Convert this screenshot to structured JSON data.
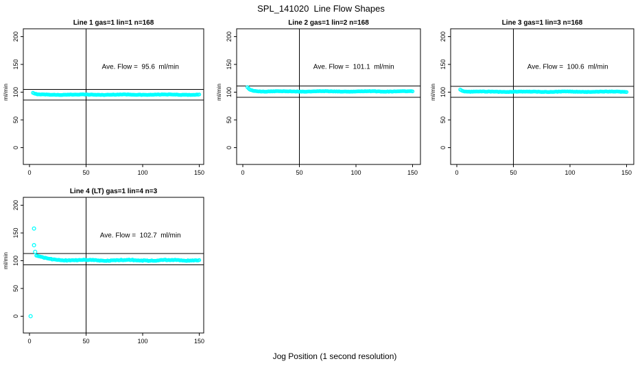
{
  "figure": {
    "title": "SPL_141020  Line Flow Shapes",
    "xlabel": "Jog Position (1 second resolution)",
    "ylabel": "ml/min",
    "background": "#FFFFFF",
    "point_color": "#00FFFF",
    "line_color": "#000000",
    "text_color": "#000000"
  },
  "chart_data": {
    "type": "scatter",
    "title": "SPL_141020  Line Flow Shapes",
    "xlabel": "Jog Position (1 second resolution)",
    "ylabel": "ml/min",
    "x_ticks": [
      0,
      50,
      100,
      150
    ],
    "y_ticks": [
      0,
      50,
      100,
      150,
      200
    ],
    "xlim": [
      -5,
      157
    ],
    "ylim": [
      -30,
      214
    ],
    "grid": false,
    "legend": "none",
    "point_style": "open-circle",
    "point_color": "#00FFFF",
    "panels": [
      {
        "title": "Line 1 gas=1 lin=1 n=168",
        "line": 1,
        "gas": 1,
        "lin": 1,
        "n": 168,
        "ave_flow": 95.6,
        "annotation": "Ave. Flow =  95.6  ml/min",
        "vline_x": 50,
        "ref_lines": [
          105.2,
          86.0
        ],
        "band": {
          "x_start": 3,
          "x_end": 150,
          "start_value": 98.5,
          "settle_value": 95.5,
          "decay_tau": 2.2,
          "noise": 0.8
        },
        "outliers": []
      },
      {
        "title": "Line 2 gas=1 lin=2 n=168",
        "line": 2,
        "gas": 1,
        "lin": 2,
        "n": 168,
        "ave_flow": 101.1,
        "annotation": "Ave. Flow =  101.1  ml/min",
        "vline_x": 50,
        "ref_lines": [
          111.2,
          91.0
        ],
        "band": {
          "x_start": 4,
          "x_end": 150,
          "start_value": 108.5,
          "settle_value": 101.4,
          "decay_tau": 3.0,
          "noise": 0.8
        },
        "outliers": []
      },
      {
        "title": "Line 3 gas=1 lin=3 n=168",
        "line": 3,
        "gas": 1,
        "lin": 3,
        "n": 168,
        "ave_flow": 100.6,
        "annotation": "Ave. Flow =  100.6  ml/min",
        "vline_x": 50,
        "ref_lines": [
          110.7,
          90.5
        ],
        "band": {
          "x_start": 3,
          "x_end": 150,
          "start_value": 105.0,
          "settle_value": 100.8,
          "decay_tau": 2.5,
          "noise": 0.8
        },
        "outliers": []
      },
      {
        "title": "Line 4 (LT) gas=1 lin=4 n=3",
        "line": 4,
        "gas": 1,
        "lin": 4,
        "n": 3,
        "ave_flow": 102.7,
        "annotation": "Ave. Flow =  102.7  ml/min",
        "vline_x": 50,
        "ref_lines": [
          113.0,
          92.4
        ],
        "band": {
          "x_start": 6,
          "x_end": 150,
          "start_value": 109.0,
          "settle_value": 100.8,
          "decay_tau": 9.0,
          "noise": 1.5
        },
        "outliers": [
          [
            1,
            0
          ],
          [
            4,
            158
          ],
          [
            4,
            128
          ],
          [
            5,
            116
          ]
        ]
      }
    ]
  }
}
